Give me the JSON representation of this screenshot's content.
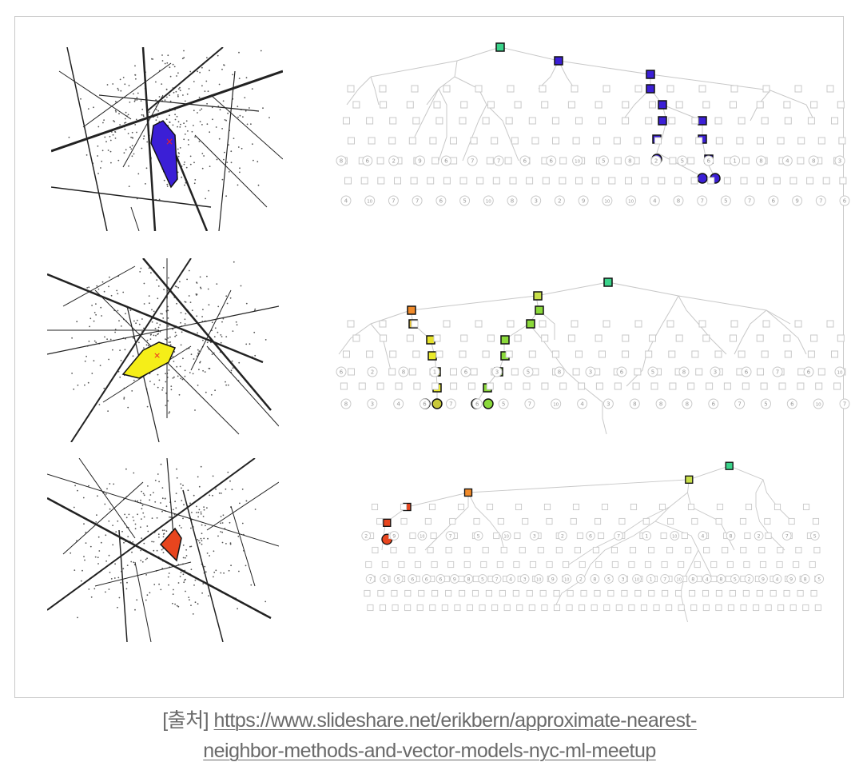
{
  "caption": {
    "prefix": "[출처]",
    "link_line1": "https://www.slideshare.net/erikbern/approximate-nearest-",
    "link_line2": "neighbor-methods-and-vector-models-nyc-ml-meetup"
  },
  "colors": {
    "root": "#3ad38a",
    "blue": "#3b1fd6",
    "yellow": "#f5ee18",
    "lime": "#8ad93a",
    "orange": "#f08a2a",
    "red": "#e8451e",
    "tree_gray": "#c8c8c8",
    "line_dark": "#222222"
  },
  "panels": [
    {
      "id": "panel-1",
      "highlight_color": "#3b1fd6",
      "leaf_labels_row1": [
        "8",
        "6",
        "2",
        "9",
        "6",
        "7",
        "7",
        "6",
        "6",
        "10",
        "5",
        "8",
        "2",
        "5",
        "6",
        "1",
        "8",
        "4",
        "8",
        "3"
      ],
      "leaf_labels_row2": [
        "4",
        "10",
        "7",
        "7",
        "6",
        "5",
        "10",
        "8",
        "3",
        "2",
        "9",
        "10",
        "10",
        "4",
        "8",
        "7",
        "5",
        "7",
        "6",
        "9",
        "7",
        "6"
      ]
    },
    {
      "id": "panel-2",
      "highlight_color": "#f5ee18",
      "leaf_labels_row1": [
        "6",
        "2",
        "8",
        "1",
        "6",
        "3",
        "5",
        "8",
        "3",
        "6",
        "5",
        "8",
        "3",
        "6",
        "7",
        "6",
        "10"
      ],
      "leaf_labels_row2": [
        "8",
        "3",
        "4",
        "6",
        "7",
        "6",
        "5",
        "7",
        "10",
        "4",
        "3",
        "8",
        "8",
        "8",
        "6",
        "7",
        "5",
        "6",
        "10",
        "7"
      ]
    },
    {
      "id": "panel-3",
      "highlight_color": "#e8451e",
      "leaf_labels_row1": [
        "2",
        "9",
        "10",
        "7",
        "5",
        "10",
        "3",
        "2",
        "6",
        "7",
        "1",
        "10",
        "4",
        "8",
        "2",
        "7",
        "5"
      ],
      "leaf_labels_row2": [
        "7",
        "5",
        "5",
        "6",
        "6",
        "6",
        "9",
        "8",
        "5",
        "7",
        "4",
        "3",
        "10",
        "9",
        "10",
        "2",
        "8",
        "5",
        "3",
        "10",
        "1",
        "7",
        "10",
        "8",
        "4",
        "8",
        "5",
        "2",
        "9",
        "4",
        "9",
        "8",
        "5"
      ]
    }
  ]
}
